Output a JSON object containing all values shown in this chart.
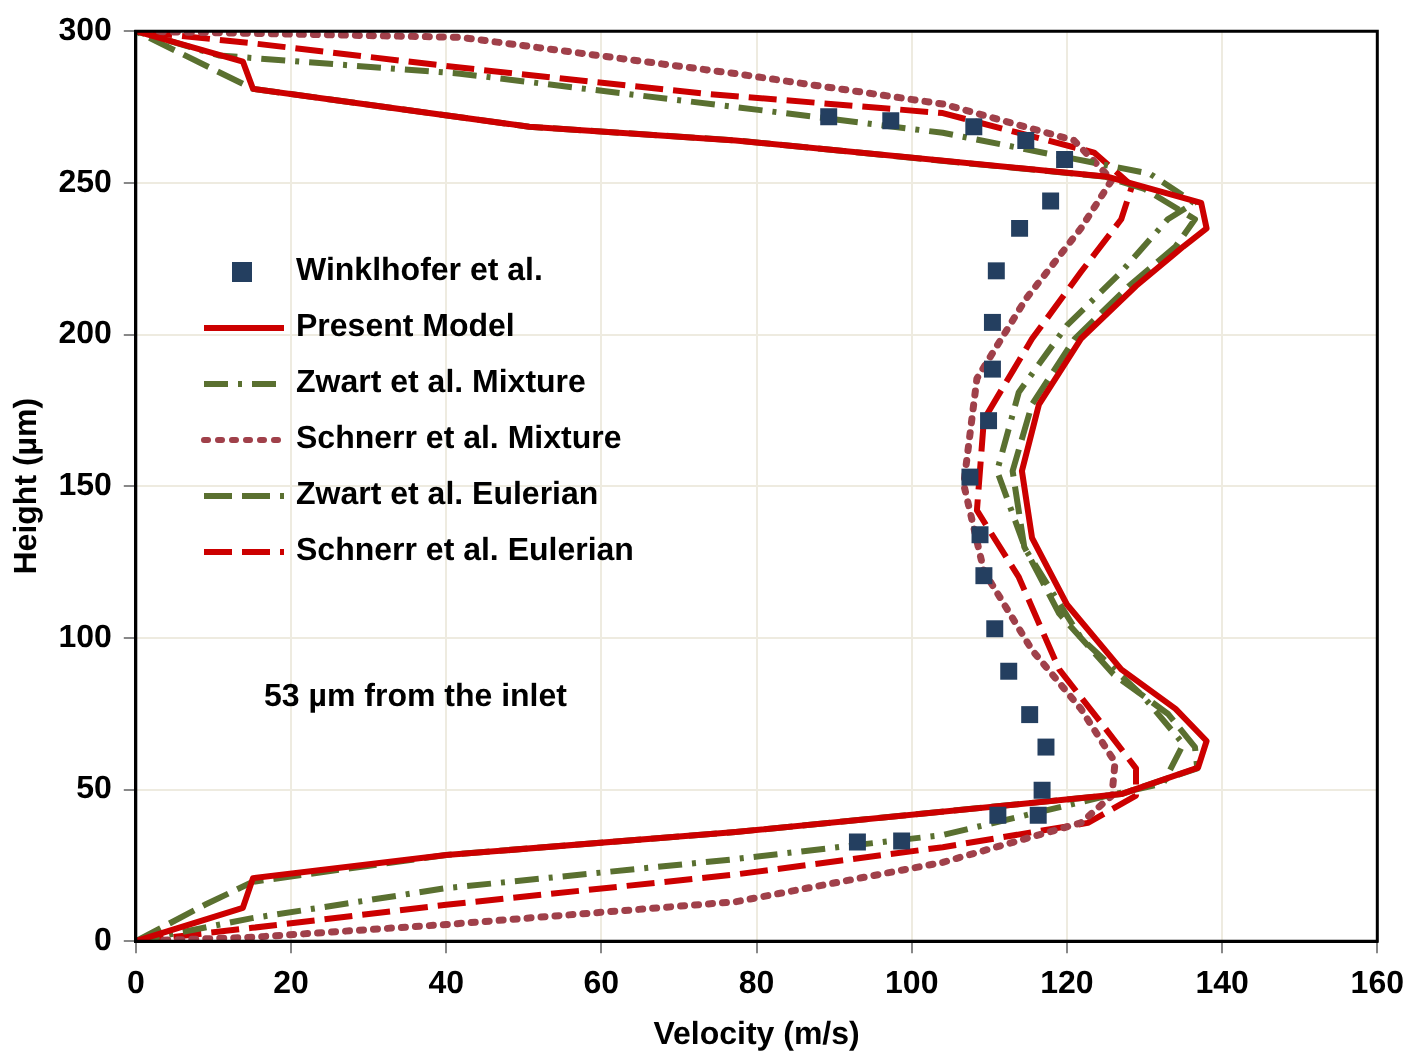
{
  "chart_data": {
    "type": "line",
    "xlabel": "Velocity (m/s)",
    "ylabel": "Height (µm)",
    "xlim": [
      0,
      160
    ],
    "xticks": [
      0,
      20,
      40,
      60,
      80,
      100,
      120,
      140,
      160
    ],
    "ylim": [
      0,
      300
    ],
    "yticks": [
      0,
      50,
      100,
      150,
      200,
      250,
      300
    ],
    "grid": true,
    "legend": "left",
    "annotations": [
      "53 µm from the inlet"
    ],
    "series": [
      {
        "name": "Winklhofer et al.",
        "type": "scatter",
        "marker": "square",
        "color": "#243f60",
        "x": [
          89.3,
          97.3,
          108,
          114.7,
          119.7,
          117.9,
          113.9,
          110.9,
          110.4,
          110.4,
          109.9,
          107.5,
          108.8,
          109.3,
          110.7,
          112.5,
          115.2,
          117.3,
          116.8,
          116.3,
          111.1,
          93,
          98.7
        ],
        "values": [
          271.8,
          270.5,
          268.5,
          264,
          257.7,
          244,
          235,
          221,
          204,
          188.6,
          171.6,
          153,
          134,
          120.5,
          103,
          89,
          74.7,
          64,
          49.8,
          41.5,
          41.5,
          32.7,
          33
        ]
      },
      {
        "name": "Present Model",
        "marker": "none",
        "line_style": "solid",
        "color": "#cc0000",
        "x": [
          0,
          13.8,
          15.1,
          40,
          77.3,
          127,
          136.9,
          138,
          134,
          127,
          120,
          115.5,
          114.2,
          116.4,
          121.8,
          128.9,
          135,
          138,
          137.3,
          125.3,
          77.3,
          50.7,
          15.1,
          13.8,
          0
        ],
        "values": [
          0,
          11,
          20.8,
          28.4,
          36,
          48.5,
          57.2,
          66,
          76.6,
          89.6,
          111,
          133,
          155,
          177,
          198.6,
          216,
          229,
          235,
          243.4,
          252,
          264,
          268.5,
          281,
          290,
          300
        ]
      },
      {
        "name": "Zwart et al. Mixture",
        "marker": "none",
        "line_style": "dashdot",
        "color": "#5a7030",
        "x": [
          0,
          15,
          40,
          77,
          104,
          125.3,
          132.4,
          135,
          129.8,
          121.8,
          114.7,
          111,
          113.8,
          120,
          127,
          133,
          136.4,
          130.7,
          104,
          77.3,
          41.8,
          10.7,
          0
        ],
        "values": [
          0,
          7.6,
          17.5,
          27,
          35,
          48,
          52,
          65,
          80.8,
          100,
          129,
          155,
          181,
          203,
          220.6,
          238,
          243.4,
          253,
          266.5,
          275,
          286,
          292,
          300
        ]
      },
      {
        "name": "Schnerr et al. Mixture",
        "marker": "none",
        "line_style": "dotted",
        "color": "#a0404a",
        "x": [
          0,
          15,
          40,
          77.3,
          104,
          121.8,
          125.8,
          126.2,
          121.8,
          115.5,
          109.3,
          106.7,
          108.4,
          114.7,
          121.8,
          125.8,
          120.9,
          104,
          77.3,
          41.8,
          0
        ],
        "values": [
          0,
          1.3,
          5.5,
          13,
          26,
          39,
          48,
          59,
          76.6,
          96,
          122,
          150.6,
          185.5,
          211.7,
          235,
          251,
          264,
          276,
          286,
          298,
          300
        ]
      },
      {
        "name": "Zwart et al. Eulerian",
        "marker": "none",
        "line_style": "dashed",
        "color": "#5a7030",
        "x": [
          0,
          8.9,
          15.1,
          40,
          77.3,
          127,
          136.8,
          136.5,
          133,
          126,
          119,
          114.5,
          113,
          115.5,
          121,
          128,
          134,
          136.5,
          130,
          125,
          77.3,
          50.7,
          15.1,
          0
        ],
        "values": [
          0,
          12,
          19.6,
          28.4,
          36,
          48.5,
          57,
          64,
          75,
          88,
          108,
          130,
          155,
          177,
          198.6,
          216,
          229,
          238,
          248,
          252,
          264,
          268.5,
          281,
          300
        ]
      },
      {
        "name": "Schnerr et al. Eulerian",
        "marker": "none",
        "line_style": "dashed",
        "color": "#cc0000",
        "x": [
          0,
          15,
          40,
          77.3,
          104,
          122.7,
          128.9,
          128.9,
          124.4,
          119,
          113.8,
          108.4,
          109.3,
          115.5,
          121.8,
          127,
          128.4,
          123.5,
          104,
          72.9,
          41.8,
          15.1,
          0
        ],
        "values": [
          0,
          4.4,
          12,
          22,
          31,
          39,
          48,
          57,
          72,
          89.6,
          120,
          142,
          172,
          198.6,
          220.6,
          238,
          249,
          260,
          273,
          279.5,
          288,
          296,
          300
        ]
      }
    ]
  }
}
